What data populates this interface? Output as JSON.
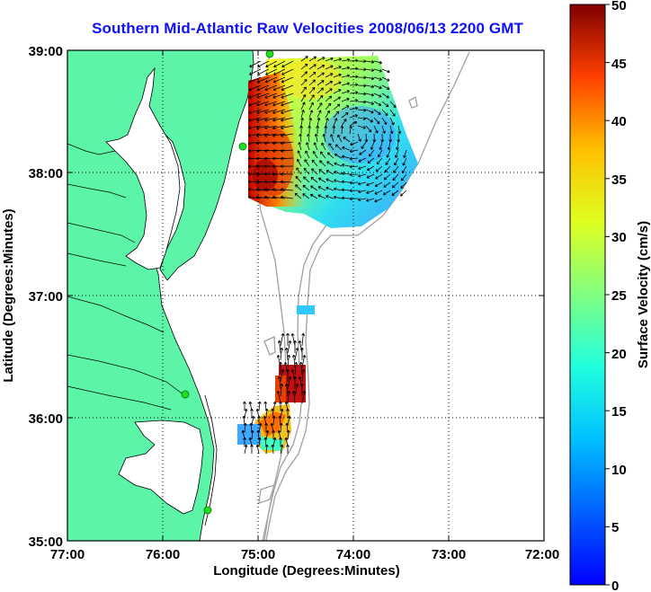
{
  "title": "Southern Mid-Atlantic Raw Velocities 2008/06/13 2200 GMT",
  "xaxis": {
    "label": "Longitude (Degrees:Minutes)",
    "ticks": [
      "77:00",
      "76:00",
      "75:00",
      "74:00",
      "73:00",
      "72:00"
    ]
  },
  "yaxis": {
    "label": "Latitude (Degrees:Minutes)",
    "ticks": [
      "39:00",
      "38:00",
      "37:00",
      "36:00",
      "35:00"
    ]
  },
  "colorbar": {
    "label": "Surface Velocity (cm/s)",
    "ticks": [
      "50",
      "45",
      "40",
      "35",
      "30",
      "25",
      "20",
      "15",
      "10",
      "5",
      "0"
    ],
    "min": 0,
    "max": 50,
    "colormap": "jet"
  },
  "colors": {
    "title": "#1010ff",
    "land": "#5cf5a8",
    "grid": "#000000",
    "bathymetry": "#a0a0a0",
    "station": "#22dd22"
  },
  "chart_data": {
    "type": "heatmap",
    "x_range": [
      -77,
      -72
    ],
    "y_range": [
      35,
      39
    ],
    "grid": true,
    "grid_style": "dotted",
    "stations": [
      {
        "lon": -74.93,
        "lat": 39.0
      },
      {
        "lon": -75.17,
        "lat": 38.22
      },
      {
        "lon": -75.73,
        "lat": 36.19
      },
      {
        "lon": -75.48,
        "lat": 35.24
      }
    ]
  }
}
